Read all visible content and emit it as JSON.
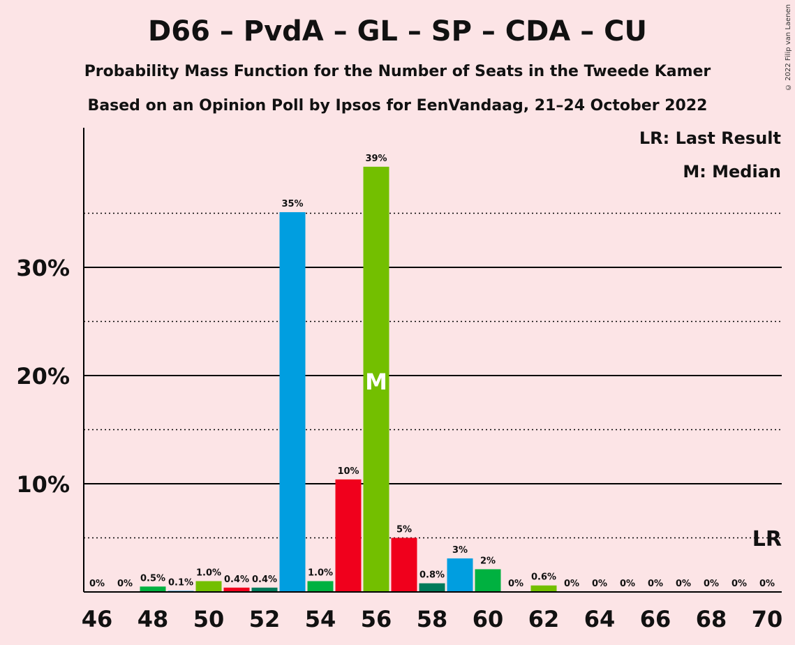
{
  "title": "D66 – PvdA – GL – SP – CDA – CU",
  "subtitle1": "Probability Mass Function for the Number of Seats in the Tweede Kamer",
  "subtitle2": "Based on an Opinion Poll by Ipsos for EenVandaag, 21–24 October 2022",
  "copyright": "© 2022 Filip van Laenen",
  "legend": {
    "last_result": "LR: Last Result",
    "median": "M: Median"
  },
  "markers": {
    "median_label": "M",
    "last_result_label": "LR"
  },
  "chart_data": {
    "type": "bar",
    "title": "D66 – PvdA – GL – SP – CDA – CU",
    "xlabel": "",
    "ylabel": "",
    "ylim": [
      0,
      43
    ],
    "y_ticks": [
      {
        "value": 10,
        "label": "10%"
      },
      {
        "value": 20,
        "label": "20%"
      },
      {
        "value": 30,
        "label": "30%"
      }
    ],
    "x_ticks": [
      46,
      48,
      50,
      52,
      54,
      56,
      58,
      60,
      62,
      64,
      66,
      68,
      70
    ],
    "median": 56,
    "last_result": 70,
    "grid": "solid at 10% steps, dotted at 5% steps",
    "bars": [
      {
        "x": 46,
        "value": 0,
        "label": "0%",
        "color": "#00b140"
      },
      {
        "x": 47,
        "value": 0,
        "label": "0%",
        "color": "#00b140"
      },
      {
        "x": 48,
        "value": 0.5,
        "label": "0.5%",
        "color": "#00b140"
      },
      {
        "x": 49,
        "value": 0.1,
        "label": "0.1%",
        "color": "#009ee0"
      },
      {
        "x": 50,
        "value": 1.0,
        "label": "1.0%",
        "color": "#73bf00"
      },
      {
        "x": 51,
        "value": 0.4,
        "label": "0.4%",
        "color": "#f0001c"
      },
      {
        "x": 52,
        "value": 0.4,
        "label": "0.4%",
        "color": "#007a5a"
      },
      {
        "x": 53,
        "value": 35.1,
        "label": "35%",
        "color": "#009ee0"
      },
      {
        "x": 54,
        "value": 1.0,
        "label": "1.0%",
        "color": "#00b140"
      },
      {
        "x": 55,
        "value": 10.4,
        "label": "10%",
        "color": "#f0001c"
      },
      {
        "x": 56,
        "value": 39.3,
        "label": "39%",
        "color": "#73bf00"
      },
      {
        "x": 57,
        "value": 5.0,
        "label": "5%",
        "color": "#f0001c"
      },
      {
        "x": 58,
        "value": 0.8,
        "label": "0.8%",
        "color": "#007a5a"
      },
      {
        "x": 59,
        "value": 3.1,
        "label": "3%",
        "color": "#009ee0"
      },
      {
        "x": 60,
        "value": 2.1,
        "label": "2%",
        "color": "#00b140"
      },
      {
        "x": 61,
        "value": 0,
        "label": "0%",
        "color": "#73bf00"
      },
      {
        "x": 62,
        "value": 0.6,
        "label": "0.6%",
        "color": "#73bf00"
      },
      {
        "x": 63,
        "value": 0,
        "label": "0%",
        "color": "#73bf00"
      },
      {
        "x": 64,
        "value": 0,
        "label": "0%",
        "color": "#73bf00"
      },
      {
        "x": 65,
        "value": 0,
        "label": "0%",
        "color": "#73bf00"
      },
      {
        "x": 66,
        "value": 0,
        "label": "0%",
        "color": "#73bf00"
      },
      {
        "x": 67,
        "value": 0,
        "label": "0%",
        "color": "#73bf00"
      },
      {
        "x": 68,
        "value": 0,
        "label": "0%",
        "color": "#73bf00"
      },
      {
        "x": 69,
        "value": 0,
        "label": "0%",
        "color": "#73bf00"
      },
      {
        "x": 70,
        "value": 0,
        "label": "0%",
        "color": "#73bf00"
      }
    ]
  }
}
